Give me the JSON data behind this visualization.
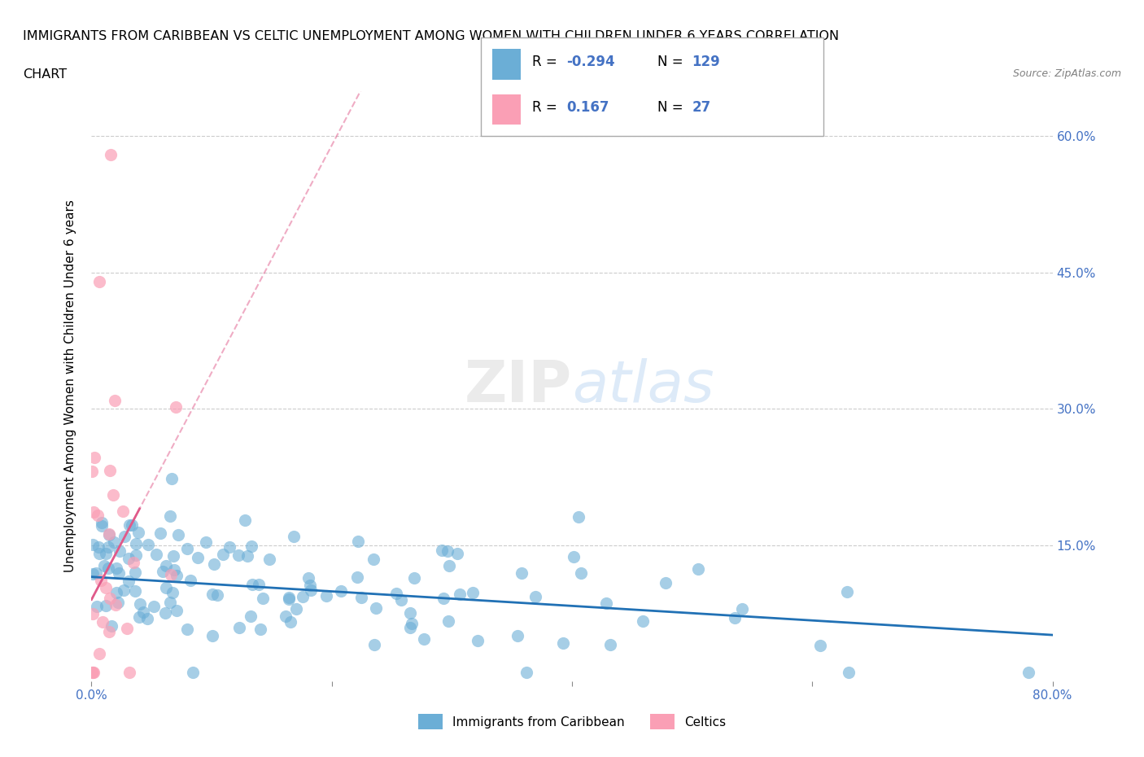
{
  "title_line1": "IMMIGRANTS FROM CARIBBEAN VS CELTIC UNEMPLOYMENT AMONG WOMEN WITH CHILDREN UNDER 6 YEARS CORRELATION",
  "title_line2": "CHART",
  "source_text": "Source: ZipAtlas.com",
  "ylabel": "Unemployment Among Women with Children Under 6 years",
  "xlim": [
    0.0,
    0.8
  ],
  "ylim": [
    0.0,
    0.65
  ],
  "blue_color": "#6baed6",
  "pink_color": "#fa9fb5",
  "blue_line_color": "#2171b5",
  "pink_line_color": "#e05a8a",
  "grid_color": "#cccccc",
  "legend_r_blue": "-0.294",
  "legend_n_blue": "129",
  "legend_r_pink": "0.167",
  "legend_n_pink": "27",
  "legend_label_blue": "Immigrants from Caribbean",
  "legend_label_pink": "Celtics",
  "watermark_zip": "ZIP",
  "watermark_atlas": "atlas"
}
